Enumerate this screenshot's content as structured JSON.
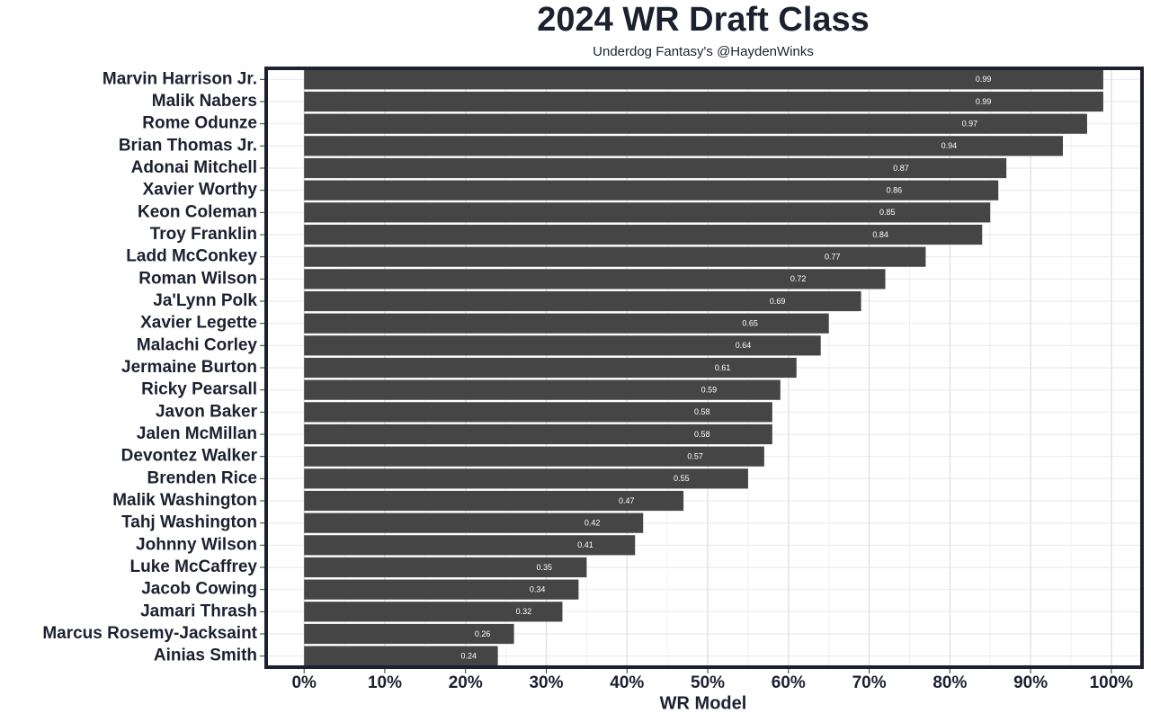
{
  "chart_data": {
    "type": "barh",
    "title": "2024 WR Draft Class",
    "subtitle": "Underdog Fantasy's @HaydenWinks",
    "xlabel": "WR Model",
    "categories": [
      "Marvin Harrison Jr.",
      "Malik Nabers",
      "Rome Odunze",
      "Brian Thomas Jr.",
      "Adonai Mitchell",
      "Xavier Worthy",
      "Keon Coleman",
      "Troy Franklin",
      "Ladd McConkey",
      "Roman Wilson",
      "Ja'Lynn Polk",
      "Xavier Legette",
      "Malachi Corley",
      "Jermaine Burton",
      "Ricky Pearsall",
      "Javon Baker",
      "Jalen McMillan",
      "Devontez Walker",
      "Brenden Rice",
      "Malik Washington",
      "Tahj Washington",
      "Johnny Wilson",
      "Luke McCaffrey",
      "Jacob Cowing",
      "Jamari Thrash",
      "Marcus Rosemy-Jacksaint",
      "Ainias Smith"
    ],
    "values": [
      0.99,
      0.99,
      0.97,
      0.94,
      0.87,
      0.86,
      0.85,
      0.84,
      0.77,
      0.72,
      0.69,
      0.65,
      0.64,
      0.61,
      0.59,
      0.58,
      0.58,
      0.57,
      0.55,
      0.47,
      0.42,
      0.41,
      0.35,
      0.34,
      0.32,
      0.26,
      0.24
    ],
    "color": "#454545",
    "xlim": [
      -0.047,
      1.038
    ],
    "xticks": [
      {
        "value": 0,
        "label": "0%"
      },
      {
        "value": 0.1,
        "label": "10%"
      },
      {
        "value": 0.2,
        "label": "20%"
      },
      {
        "value": 0.3,
        "label": "30%"
      },
      {
        "value": 0.4,
        "label": "40%"
      },
      {
        "value": 0.5,
        "label": "50%"
      },
      {
        "value": 0.6,
        "label": "60%"
      },
      {
        "value": 0.7,
        "label": "70%"
      },
      {
        "value": 0.8,
        "label": "80%"
      },
      {
        "value": 0.9,
        "label": "90%"
      },
      {
        "value": 1,
        "label": "100%"
      }
    ],
    "grid": true
  }
}
